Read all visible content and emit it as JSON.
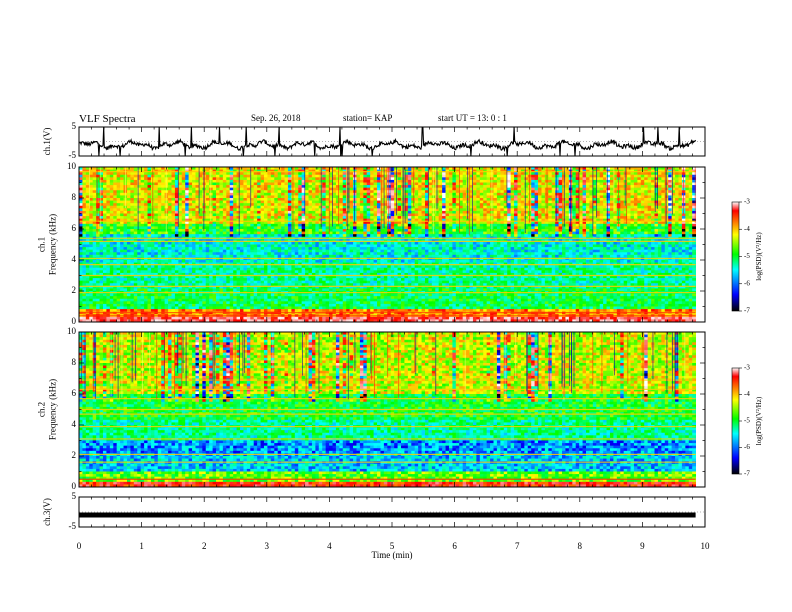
{
  "header": {
    "title": "VLF Spectra",
    "date": "Sep. 26, 2018",
    "station": "station= KAP",
    "start": "start  UT =   13: 0  : 1"
  },
  "colorbar": {
    "label": "log(PSD)(V²/Hz)",
    "ticks": [
      "-3",
      "-4",
      "-5",
      "-6",
      "-7"
    ],
    "colors": [
      "#ffffff",
      "#ff0000",
      "#ffff00",
      "#00ff00",
      "#00ffff",
      "#0000ff",
      "#000000"
    ]
  },
  "chart_data": [
    {
      "type": "line",
      "name": "ch1-waveform",
      "ylabel": "ch.1(V)",
      "ylim": [
        -5,
        5
      ],
      "yticks": [
        "5",
        "-5"
      ],
      "xlim": [
        0,
        10
      ],
      "x_unit": "min",
      "description_values": {
        "baseline": -1.2,
        "amplitude_typical": 1.5,
        "spike_min": -5,
        "spike_max": 5,
        "data_end_min": 9.85
      }
    },
    {
      "type": "heatmap",
      "name": "ch1-spectrogram",
      "ylabel": "ch.1\nFrequency (kHz)",
      "ylim": [
        0,
        10
      ],
      "yticks": [
        "0",
        "2",
        "4",
        "6",
        "8",
        "10"
      ],
      "xlim": [
        0,
        10
      ],
      "z_range": [
        -7,
        -3
      ],
      "z_label": "log(PSD)(V²/Hz)",
      "bands_khz": [
        {
          "f_low": 0,
          "f_high": 0.3,
          "level": -3.5
        },
        {
          "f_low": 0.3,
          "f_high": 0.8,
          "level": -4.2
        },
        {
          "f_low": 0.8,
          "f_high": 2.2,
          "level": -5.4
        },
        {
          "f_low": 2.2,
          "f_high": 3.8,
          "level": -5.6
        },
        {
          "f_low": 3.8,
          "f_high": 5.6,
          "level": -5.8
        },
        {
          "f_low": 5.6,
          "f_high": 6.4,
          "level": -5.2
        },
        {
          "f_low": 6.4,
          "f_high": 10,
          "level": -4.6
        }
      ],
      "lines_khz": [
        0.4,
        0.6,
        1.9,
        2.3,
        3.0,
        3.7,
        4.1,
        5.2,
        5.4,
        6.5,
        9.7
      ]
    },
    {
      "type": "heatmap",
      "name": "ch2-spectrogram",
      "ylabel": "ch.2\nFrequency (kHz)",
      "ylim": [
        0,
        10
      ],
      "yticks": [
        "0",
        "2",
        "4",
        "6",
        "8",
        "10"
      ],
      "xlim": [
        0,
        10
      ],
      "z_range": [
        -7,
        -3
      ],
      "z_label": "log(PSD)(V²/Hz)",
      "bands_khz": [
        {
          "f_low": 0,
          "f_high": 0.3,
          "level": -3.8
        },
        {
          "f_low": 0.3,
          "f_high": 1.0,
          "level": -5.0
        },
        {
          "f_low": 1.0,
          "f_high": 2.2,
          "level": -6.0
        },
        {
          "f_low": 2.2,
          "f_high": 3.0,
          "level": -6.2
        },
        {
          "f_low": 3.0,
          "f_high": 4.4,
          "level": -5.6
        },
        {
          "f_low": 4.4,
          "f_high": 6.0,
          "level": -5.3
        },
        {
          "f_low": 6.0,
          "f_high": 10,
          "level": -4.7
        }
      ],
      "lines_khz": [
        0.5,
        1.6,
        2.1,
        3.1,
        3.9,
        4.7,
        5.0,
        5.7,
        6.3,
        6.9
      ]
    },
    {
      "type": "line",
      "name": "ch3-waveform",
      "ylabel": "ch.3(V)",
      "ylim": [
        -5,
        5
      ],
      "yticks": [
        "5",
        "-5"
      ],
      "xlim": [
        0,
        10
      ],
      "x": [
        0,
        9.85
      ],
      "y": [
        -1,
        -1
      ],
      "xlabel": "Time  (min)",
      "xticks": [
        "0",
        "1",
        "2",
        "3",
        "4",
        "5",
        "6",
        "7",
        "8",
        "9",
        "10"
      ]
    }
  ]
}
